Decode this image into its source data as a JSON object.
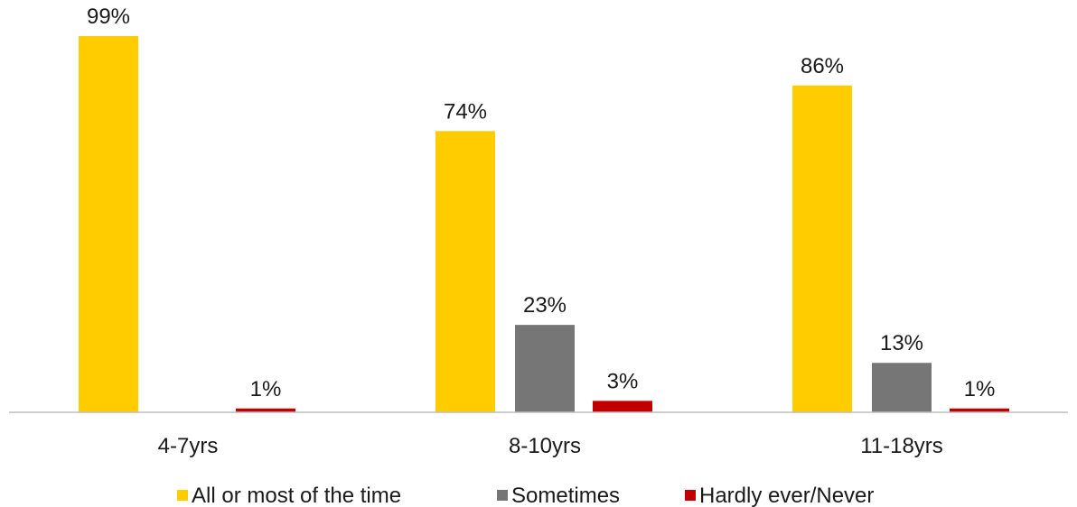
{
  "chart_data": {
    "type": "bar",
    "categories": [
      "4-7yrs",
      "8-10yrs",
      "11-18yrs"
    ],
    "series": [
      {
        "name": "All or most of the time",
        "color": "#FFCC00",
        "values": [
          99,
          74,
          86
        ],
        "labels": [
          "99%",
          "74%",
          "86%"
        ]
      },
      {
        "name": "Sometimes",
        "color": "#767676",
        "values": [
          0,
          23,
          13
        ],
        "labels": [
          "",
          "23%",
          "13%"
        ]
      },
      {
        "name": "Hardly ever/Never",
        "color": "#C00000",
        "values": [
          1,
          3,
          1
        ],
        "labels": [
          "1%",
          "3%",
          "1%"
        ]
      }
    ],
    "ylim": [
      0,
      100
    ],
    "grid": false,
    "legend_position": "bottom",
    "title": "",
    "xlabel": "",
    "ylabel": ""
  }
}
